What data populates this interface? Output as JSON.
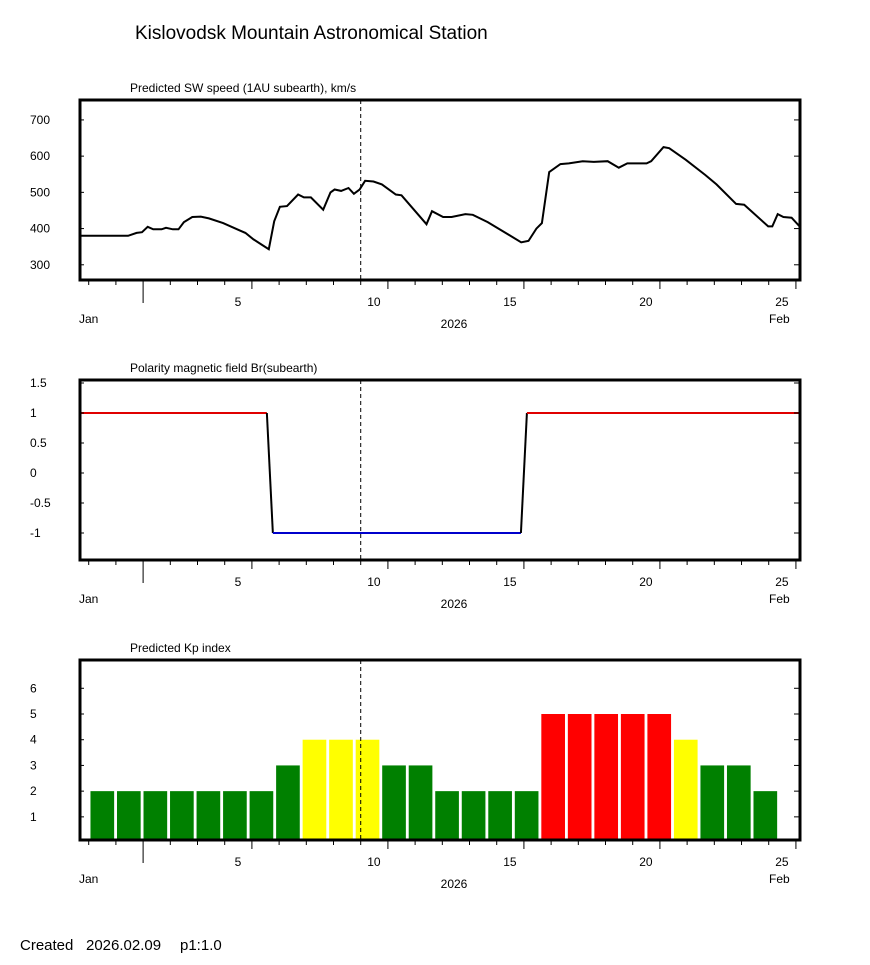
{
  "title": "Kislovodsk Mountain Astronomical Station",
  "footer": {
    "created_label": "Created",
    "created_date": "2026.02.09",
    "page": "p1:1.0"
  },
  "colors": {
    "line": "#000000",
    "positive": "#e00000",
    "negative": "#0000cc",
    "kp_quiet": "#008000",
    "kp_active": "#ffff00",
    "kp_storm": "#ff0000"
  },
  "x_axis": {
    "xlim": [
      -1.32,
      25.15
    ],
    "tick_labels": [
      "5",
      "10",
      "15",
      "20",
      "25"
    ],
    "tick_values": [
      5,
      10,
      15,
      20,
      25
    ],
    "month_boundary": 1,
    "left_label": "Jan",
    "center_label": "2026",
    "right_label": "Feb",
    "current_marker": 9
  },
  "chart_data": [
    {
      "type": "line",
      "title": "Predicted SW speed (1AU subearth), km/s",
      "ylim": [
        258,
        755
      ],
      "yticks": [
        300,
        400,
        500,
        600,
        700
      ],
      "x": [
        -1.29,
        0.45,
        0.76,
        0.96,
        1.17,
        1.37,
        1.68,
        1.84,
        2.09,
        2.3,
        2.5,
        2.81,
        3.12,
        3.42,
        3.94,
        4.55,
        4.76,
        5.06,
        5.37,
        5.62,
        5.82,
        6.03,
        6.29,
        6.7,
        6.91,
        7.17,
        7.62,
        7.89,
        8.04,
        8.28,
        8.55,
        8.75,
        8.96,
        9.16,
        9.47,
        9.78,
        10.29,
        10.5,
        11.42,
        11.62,
        12.03,
        12.34,
        12.85,
        13.12,
        13.67,
        14.9,
        15.17,
        15.46,
        15.66,
        15.93,
        16.34,
        16.65,
        17.16,
        17.57,
        18.08,
        18.49,
        18.8,
        19.51,
        19.68,
        20.13,
        20.34,
        20.95,
        21.67,
        22.08,
        22.8,
        23.1,
        23.98,
        24.13,
        24.33,
        24.54,
        24.84,
        25.15
      ],
      "y": [
        380,
        380,
        388,
        390,
        405,
        398,
        398,
        402,
        398,
        398,
        418,
        432,
        433,
        428,
        415,
        395,
        388,
        370,
        355,
        343,
        420,
        460,
        462,
        494,
        486,
        486,
        452,
        500,
        508,
        504,
        512,
        496,
        508,
        532,
        530,
        522,
        494,
        492,
        412,
        448,
        432,
        432,
        440,
        438,
        418,
        362,
        366,
        400,
        415,
        556,
        578,
        580,
        586,
        584,
        586,
        568,
        580,
        580,
        586,
        625,
        622,
        590,
        548,
        522,
        468,
        466,
        406,
        406,
        440,
        432,
        430,
        405
      ]
    },
    {
      "type": "line",
      "title": "Polarity magnetic field  Br(subearth)",
      "ylim": [
        -1.45,
        1.55
      ],
      "yticks": [
        -1,
        -0.5,
        0,
        0.5,
        1,
        1.5
      ],
      "ytick_labels": [
        "-1",
        "-0.5",
        "0",
        "0.5",
        "1",
        "1.5"
      ],
      "x": [
        -1.32,
        5.55,
        5.77,
        14.89,
        15.11,
        25.15
      ],
      "y": [
        1,
        1,
        -1,
        -1,
        1,
        1
      ]
    },
    {
      "type": "bar",
      "title": "Predicted Kp index",
      "ylim": [
        0.1,
        7.1
      ],
      "yticks": [
        1,
        2,
        3,
        4,
        5,
        6
      ],
      "first_day": -0.5,
      "day_step": 0.975,
      "values": [
        2,
        2,
        2,
        2,
        2,
        2,
        2,
        3,
        4,
        4,
        4,
        3,
        3,
        2,
        2,
        2,
        2,
        5,
        5,
        5,
        5,
        5,
        4,
        3,
        3,
        2
      ]
    }
  ]
}
